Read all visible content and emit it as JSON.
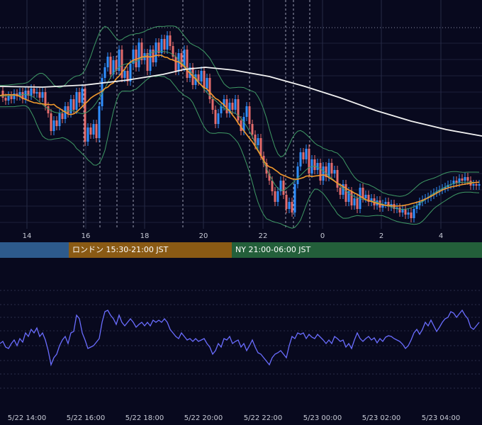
{
  "chart_data": [
    {
      "type": "candlestick",
      "title": "",
      "x_ticks": [
        "14",
        "16",
        "18",
        "20",
        "22",
        "0",
        "2",
        "4"
      ],
      "indicators": [
        "bollinger-bands",
        "moving-average-orange",
        "moving-average-white"
      ],
      "price_path": [
        [
          0,
          128
        ],
        [
          4,
          138
        ],
        [
          8,
          142
        ],
        [
          12,
          135
        ],
        [
          16,
          140
        ],
        [
          20,
          132
        ],
        [
          24,
          136
        ],
        [
          28,
          130
        ],
        [
          32,
          140
        ],
        [
          36,
          128
        ],
        [
          40,
          135
        ],
        [
          44,
          125
        ],
        [
          48,
          132
        ],
        [
          52,
          130
        ],
        [
          56,
          138
        ],
        [
          60,
          130
        ],
        [
          64,
          150
        ],
        [
          68,
          160
        ],
        [
          72,
          185
        ],
        [
          76,
          170
        ],
        [
          80,
          178
        ],
        [
          84,
          160
        ],
        [
          88,
          168
        ],
        [
          92,
          150
        ],
        [
          96,
          160
        ],
        [
          100,
          140
        ],
        [
          104,
          155
        ],
        [
          108,
          130
        ],
        [
          112,
          145
        ],
        [
          116,
          125
        ],
        [
          120,
          200
        ],
        [
          124,
          180
        ],
        [
          128,
          190
        ],
        [
          132,
          175
        ],
        [
          136,
          195
        ],
        [
          140,
          150
        ],
        [
          144,
          110
        ],
        [
          148,
          95
        ],
        [
          152,
          80
        ],
        [
          156,
          105
        ],
        [
          160,
          85
        ],
        [
          164,
          100
        ],
        [
          168,
          70
        ],
        [
          172,
          110
        ],
        [
          176,
          100
        ],
        [
          180,
          115
        ],
        [
          184,
          90
        ],
        [
          188,
          70
        ],
        [
          192,
          95
        ],
        [
          196,
          60
        ],
        [
          200,
          85
        ],
        [
          204,
          75
        ],
        [
          208,
          100
        ],
        [
          212,
          70
        ],
        [
          216,
          88
        ],
        [
          220,
          60
        ],
        [
          224,
          75
        ],
        [
          228,
          55
        ],
        [
          232,
          70
        ],
        [
          236,
          50
        ],
        [
          240,
          65
        ],
        [
          244,
          80
        ],
        [
          248,
          100
        ],
        [
          252,
          75
        ],
        [
          256,
          95
        ],
        [
          260,
          70
        ],
        [
          264,
          110
        ],
        [
          268,
          95
        ],
        [
          272,
          120
        ],
        [
          276,
          105
        ],
        [
          280,
          115
        ],
        [
          284,
          100
        ],
        [
          288,
          125
        ],
        [
          292,
          110
        ],
        [
          296,
          140
        ],
        [
          300,
          155
        ],
        [
          304,
          175
        ],
        [
          308,
          160
        ],
        [
          312,
          150
        ],
        [
          316,
          140
        ],
        [
          320,
          160
        ],
        [
          324,
          145
        ],
        [
          328,
          155
        ],
        [
          332,
          140
        ],
        [
          336,
          170
        ],
        [
          340,
          185
        ],
        [
          344,
          165
        ],
        [
          348,
          150
        ],
        [
          352,
          175
        ],
        [
          356,
          190
        ],
        [
          360,
          205
        ],
        [
          364,
          195
        ],
        [
          368,
          220
        ],
        [
          372,
          230
        ],
        [
          376,
          245
        ],
        [
          380,
          255
        ],
        [
          384,
          270
        ],
        [
          388,
          285
        ],
        [
          392,
          270
        ],
        [
          396,
          255
        ],
        [
          400,
          275
        ],
        [
          404,
          295
        ],
        [
          408,
          285
        ],
        [
          412,
          300
        ],
        [
          416,
          260
        ],
        [
          420,
          235
        ],
        [
          424,
          215
        ],
        [
          428,
          225
        ],
        [
          432,
          210
        ],
        [
          436,
          245
        ],
        [
          440,
          225
        ],
        [
          444,
          240
        ],
        [
          448,
          230
        ],
        [
          452,
          255
        ],
        [
          456,
          235
        ],
        [
          460,
          250
        ],
        [
          464,
          230
        ],
        [
          468,
          245
        ],
        [
          472,
          240
        ],
        [
          476,
          265
        ],
        [
          480,
          275
        ],
        [
          484,
          260
        ],
        [
          488,
          285
        ],
        [
          492,
          270
        ],
        [
          496,
          290
        ],
        [
          500,
          280
        ],
        [
          504,
          295
        ],
        [
          508,
          265
        ],
        [
          512,
          280
        ],
        [
          516,
          275
        ],
        [
          520,
          285
        ],
        [
          524,
          280
        ],
        [
          528,
          290
        ],
        [
          532,
          283
        ],
        [
          536,
          293
        ],
        [
          540,
          288
        ],
        [
          544,
          285
        ],
        [
          548,
          292
        ],
        [
          552,
          288
        ],
        [
          556,
          295
        ],
        [
          560,
          293
        ],
        [
          564,
          300
        ],
        [
          568,
          295
        ],
        [
          572,
          303
        ],
        [
          576,
          300
        ],
        [
          580,
          308
        ],
        [
          584,
          295
        ],
        [
          588,
          290
        ],
        [
          592,
          285
        ],
        [
          596,
          282
        ],
        [
          600,
          280
        ],
        [
          604,
          278
        ],
        [
          608,
          275
        ],
        [
          612,
          272
        ],
        [
          616,
          270
        ],
        [
          620,
          268
        ],
        [
          624,
          266
        ],
        [
          628,
          264
        ],
        [
          632,
          261
        ],
        [
          636,
          260
        ],
        [
          640,
          255
        ],
        [
          644,
          258
        ],
        [
          648,
          252
        ],
        [
          652,
          255
        ],
        [
          656,
          250
        ],
        [
          660,
          255
        ],
        [
          664,
          262
        ],
        [
          668,
          260
        ],
        [
          672,
          262
        ],
        [
          676,
          260
        ]
      ]
    },
    {
      "type": "line",
      "title": "",
      "x_ticks": [
        "5/22 14:00",
        "5/22 16:00",
        "5/22 18:00",
        "5/22 20:00",
        "5/22 22:00",
        "5/23 00:00",
        "5/23 02:00",
        "5/23 04:00"
      ],
      "oscillator_path": [
        [
          0,
          485
        ],
        [
          4,
          482
        ],
        [
          8,
          490
        ],
        [
          12,
          492
        ],
        [
          16,
          485
        ],
        [
          20,
          480
        ],
        [
          24,
          488
        ],
        [
          28,
          478
        ],
        [
          32,
          483
        ],
        [
          36,
          470
        ],
        [
          40,
          475
        ],
        [
          44,
          465
        ],
        [
          48,
          470
        ],
        [
          52,
          463
        ],
        [
          56,
          475
        ],
        [
          60,
          470
        ],
        [
          64,
          480
        ],
        [
          68,
          495
        ],
        [
          72,
          515
        ],
        [
          76,
          505
        ],
        [
          80,
          500
        ],
        [
          84,
          488
        ],
        [
          88,
          480
        ],
        [
          92,
          475
        ],
        [
          96,
          485
        ],
        [
          100,
          470
        ],
        [
          104,
          468
        ],
        [
          108,
          445
        ],
        [
          112,
          450
        ],
        [
          116,
          470
        ],
        [
          120,
          480
        ],
        [
          124,
          492
        ],
        [
          128,
          490
        ],
        [
          132,
          488
        ],
        [
          136,
          483
        ],
        [
          140,
          478
        ],
        [
          144,
          455
        ],
        [
          148,
          440
        ],
        [
          152,
          438
        ],
        [
          156,
          445
        ],
        [
          160,
          450
        ],
        [
          164,
          458
        ],
        [
          168,
          445
        ],
        [
          172,
          455
        ],
        [
          176,
          460
        ],
        [
          180,
          455
        ],
        [
          184,
          450
        ],
        [
          188,
          455
        ],
        [
          192,
          462
        ],
        [
          196,
          458
        ],
        [
          200,
          455
        ],
        [
          204,
          460
        ],
        [
          208,
          455
        ],
        [
          212,
          460
        ],
        [
          216,
          452
        ],
        [
          220,
          455
        ],
        [
          224,
          452
        ],
        [
          228,
          455
        ],
        [
          232,
          450
        ],
        [
          236,
          455
        ],
        [
          240,
          465
        ],
        [
          244,
          470
        ],
        [
          248,
          475
        ],
        [
          252,
          478
        ],
        [
          256,
          470
        ],
        [
          260,
          475
        ],
        [
          264,
          480
        ],
        [
          268,
          478
        ],
        [
          272,
          482
        ],
        [
          276,
          478
        ],
        [
          280,
          482
        ],
        [
          284,
          480
        ],
        [
          288,
          478
        ],
        [
          292,
          485
        ],
        [
          296,
          490
        ],
        [
          300,
          500
        ],
        [
          304,
          495
        ],
        [
          308,
          485
        ],
        [
          312,
          490
        ],
        [
          316,
          478
        ],
        [
          320,
          480
        ],
        [
          324,
          475
        ],
        [
          328,
          485
        ],
        [
          332,
          482
        ],
        [
          336,
          480
        ],
        [
          340,
          490
        ],
        [
          344,
          485
        ],
        [
          348,
          495
        ],
        [
          352,
          488
        ],
        [
          356,
          480
        ],
        [
          360,
          490
        ],
        [
          364,
          498
        ],
        [
          368,
          500
        ],
        [
          372,
          505
        ],
        [
          376,
          510
        ],
        [
          380,
          515
        ],
        [
          384,
          505
        ],
        [
          388,
          500
        ],
        [
          392,
          498
        ],
        [
          396,
          495
        ],
        [
          400,
          500
        ],
        [
          404,
          505
        ],
        [
          408,
          488
        ],
        [
          412,
          475
        ],
        [
          416,
          478
        ],
        [
          420,
          470
        ],
        [
          424,
          472
        ],
        [
          428,
          470
        ],
        [
          432,
          478
        ],
        [
          436,
          472
        ],
        [
          440,
          476
        ],
        [
          444,
          478
        ],
        [
          448,
          472
        ],
        [
          452,
          476
        ],
        [
          456,
          480
        ],
        [
          460,
          485
        ],
        [
          464,
          480
        ],
        [
          468,
          485
        ],
        [
          472,
          475
        ],
        [
          476,
          478
        ],
        [
          480,
          482
        ],
        [
          484,
          480
        ],
        [
          488,
          490
        ],
        [
          492,
          485
        ],
        [
          496,
          492
        ],
        [
          500,
          480
        ],
        [
          504,
          470
        ],
        [
          508,
          478
        ],
        [
          512,
          482
        ],
        [
          516,
          478
        ],
        [
          520,
          475
        ],
        [
          524,
          480
        ],
        [
          528,
          477
        ],
        [
          532,
          484
        ],
        [
          536,
          478
        ],
        [
          540,
          482
        ],
        [
          544,
          476
        ],
        [
          548,
          474
        ],
        [
          552,
          475
        ],
        [
          556,
          478
        ],
        [
          560,
          480
        ],
        [
          564,
          482
        ],
        [
          568,
          486
        ],
        [
          572,
          492
        ],
        [
          576,
          488
        ],
        [
          580,
          480
        ],
        [
          584,
          470
        ],
        [
          588,
          465
        ],
        [
          592,
          472
        ],
        [
          596,
          465
        ],
        [
          600,
          455
        ],
        [
          604,
          460
        ],
        [
          608,
          452
        ],
        [
          612,
          460
        ],
        [
          616,
          468
        ],
        [
          620,
          462
        ],
        [
          624,
          455
        ],
        [
          628,
          450
        ],
        [
          632,
          448
        ],
        [
          636,
          440
        ],
        [
          640,
          442
        ],
        [
          644,
          448
        ],
        [
          648,
          443
        ],
        [
          652,
          438
        ],
        [
          656,
          445
        ],
        [
          660,
          450
        ],
        [
          664,
          462
        ],
        [
          668,
          465
        ],
        [
          672,
          460
        ],
        [
          676,
          455
        ]
      ]
    }
  ],
  "sessions": [
    {
      "label": "",
      "color": "#2d5a8c"
    },
    {
      "label": "ロンドン 15:30-21:00 JST",
      "color": "#8a5a14"
    },
    {
      "label": "NY 21:00-06:00 JST",
      "color": "#235f3a"
    }
  ],
  "colors": {
    "background": "#08091e",
    "bull_candle": "#2f8fff",
    "bear_candle": "#e46c6c",
    "bollinger": "#3f9a65",
    "ma_short": "#f29a2e",
    "ma_long": "#f2f2f2",
    "oscillator": "#6a6dff",
    "grid": "#1b1e3a"
  }
}
